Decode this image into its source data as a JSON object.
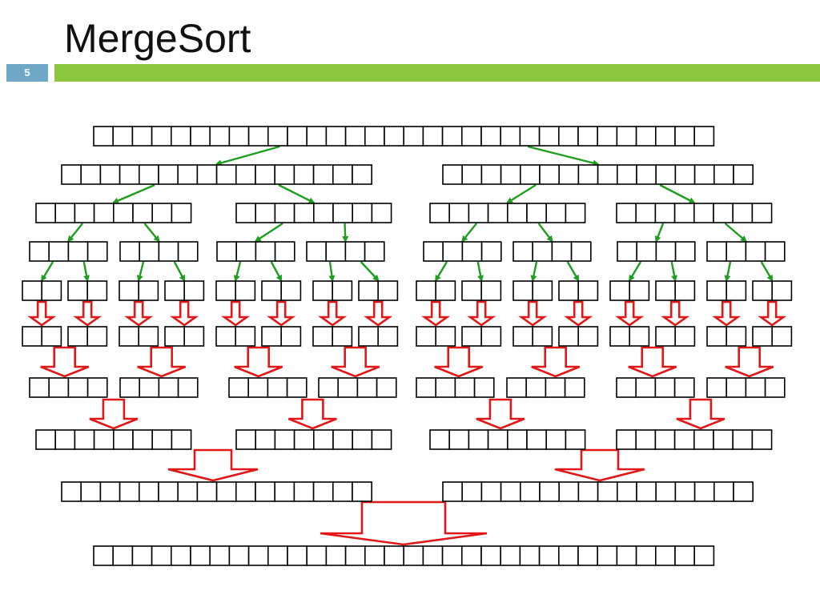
{
  "slide": {
    "title": "MergeSort",
    "number": "5"
  },
  "colors": {
    "number_box": "#6fa8c7",
    "accent_bar": "#8dc63f",
    "split_arrow": "#1e9e1e",
    "merge_arrow": "#e01818",
    "cell_border": "#000000"
  },
  "diagram": {
    "array_size": 32,
    "split_levels": [
      32,
      16,
      8,
      4,
      2
    ],
    "merge_levels": [
      2,
      4,
      8,
      16,
      32
    ],
    "split_arrow_icon": "green-split-arrow",
    "merge_arrow_icon": "red-merge-arrow"
  }
}
